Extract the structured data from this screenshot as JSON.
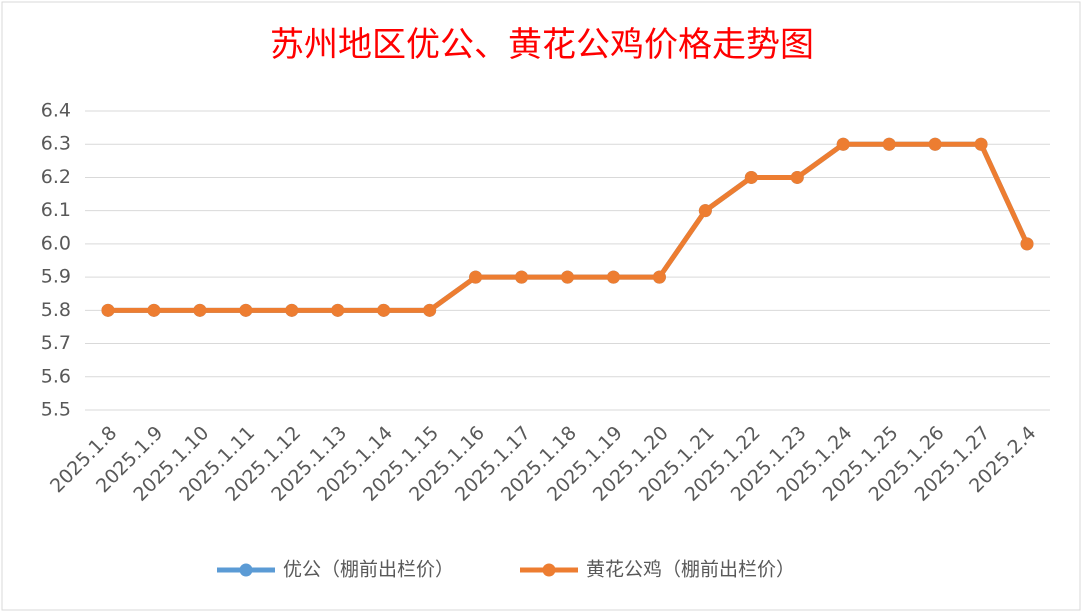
{
  "chart_data": {
    "type": "line",
    "title": "苏州地区优公、黄花公鸡价格走势图",
    "categories": [
      "2025.1.8",
      "2025.1.9",
      "2025.1.10",
      "2025.1.11",
      "2025.1.12",
      "2025.1.13",
      "2025.1.14",
      "2025.1.15",
      "2025.1.16",
      "2025.1.17",
      "2025.1.18",
      "2025.1.19",
      "2025.1.20",
      "2025.1.21",
      "2025.1.22",
      "2025.1.23",
      "2025.1.24",
      "2025.1.25",
      "2025.1.26",
      "2025.1.27",
      "2025.2.4"
    ],
    "series": [
      {
        "name": "优公（棚前出栏价）",
        "color": "#5b9bd5",
        "values": [
          5.8,
          5.8,
          5.8,
          5.8,
          5.8,
          5.8,
          5.8,
          5.8,
          5.9,
          5.9,
          5.9,
          5.9,
          5.9,
          6.1,
          6.2,
          6.2,
          6.3,
          6.3,
          6.3,
          6.3,
          6
        ]
      },
      {
        "name": "黄花公鸡（棚前出栏价）",
        "color": "#ed7d31",
        "values": [
          5.8,
          5.8,
          5.8,
          5.8,
          5.8,
          5.8,
          5.8,
          5.8,
          5.9,
          5.9,
          5.9,
          5.9,
          5.9,
          6.1,
          6.2,
          6.2,
          6.3,
          6.3,
          6.3,
          6.3,
          6
        ]
      }
    ],
    "ylim": [
      5.5,
      6.4
    ],
    "yticks": [
      5.5,
      5.6,
      5.7,
      5.8,
      5.9,
      {
        "value": 6,
        "label": "6.0"
      },
      6.1,
      6.2,
      6.3,
      6.4
    ],
    "grid": true,
    "legend": "bottom"
  }
}
